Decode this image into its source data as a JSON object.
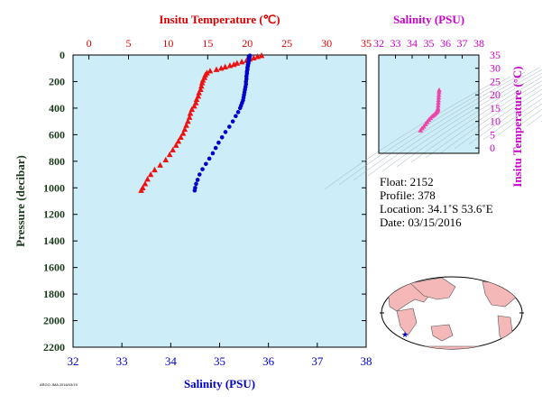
{
  "chart_data": [
    {
      "type": "scatter",
      "name": "profile",
      "y_axis": {
        "label": "Pressure (decibar)",
        "range": [
          0,
          2200
        ],
        "inverted": true,
        "ticks": [
          0,
          200,
          400,
          600,
          800,
          1000,
          1200,
          1400,
          1600,
          1800,
          2000,
          2200
        ]
      },
      "top_axis": {
        "label": "Insitu Temperature (℃)",
        "range": [
          -2,
          35
        ],
        "ticks": [
          0,
          5,
          10,
          15,
          20,
          25,
          30,
          35
        ],
        "color": "#dd0000"
      },
      "bottom_axis": {
        "label": "Salinity (PSU)",
        "range": [
          32,
          38
        ],
        "ticks": [
          32,
          33,
          34,
          35,
          36,
          37,
          38
        ],
        "color": "#0000cc"
      },
      "background": "#cdeef8",
      "series": [
        {
          "marker": "triangle",
          "color": "#ee1111",
          "axis": "top",
          "points": [
            [
              21.8,
              5
            ],
            [
              21.3,
              12
            ],
            [
              20.8,
              22
            ],
            [
              20.3,
              32
            ],
            [
              19.9,
              42
            ],
            [
              19.3,
              52
            ],
            [
              18.7,
              62
            ],
            [
              18.3,
              72
            ],
            [
              17.8,
              80
            ],
            [
              17.2,
              90
            ],
            [
              16.7,
              100
            ],
            [
              16.1,
              110
            ],
            [
              15.3,
              120
            ],
            [
              14.9,
              135
            ],
            [
              14.7,
              150
            ],
            [
              14.6,
              170
            ],
            [
              14.4,
              190
            ],
            [
              14.3,
              210
            ],
            [
              14.2,
              235
            ],
            [
              14.1,
              260
            ],
            [
              13.9,
              285
            ],
            [
              13.8,
              310
            ],
            [
              13.6,
              335
            ],
            [
              13.5,
              360
            ],
            [
              13.3,
              385
            ],
            [
              13.0,
              410
            ],
            [
              12.8,
              440
            ],
            [
              12.7,
              470
            ],
            [
              12.5,
              500
            ],
            [
              12.3,
              530
            ],
            [
              12.1,
              560
            ],
            [
              11.9,
              590
            ],
            [
              11.6,
              620
            ],
            [
              11.3,
              650
            ],
            [
              11.0,
              680
            ],
            [
              10.6,
              715
            ],
            [
              10.2,
              750
            ],
            [
              9.7,
              790
            ],
            [
              9.0,
              830
            ],
            [
              8.3,
              865
            ],
            [
              7.8,
              900
            ],
            [
              7.4,
              935
            ],
            [
              7.1,
              970
            ],
            [
              6.8,
              1000
            ],
            [
              6.6,
              1020
            ]
          ]
        },
        {
          "marker": "circle",
          "color": "#0000cc",
          "axis": "bottom",
          "points": [
            [
              35.62,
              5
            ],
            [
              35.61,
              12
            ],
            [
              35.61,
              22
            ],
            [
              35.6,
              32
            ],
            [
              35.6,
              42
            ],
            [
              35.59,
              52
            ],
            [
              35.59,
              62
            ],
            [
              35.58,
              72
            ],
            [
              35.58,
              82
            ],
            [
              35.57,
              95
            ],
            [
              35.57,
              110
            ],
            [
              35.56,
              125
            ],
            [
              35.56,
              140
            ],
            [
              35.55,
              160
            ],
            [
              35.55,
              180
            ],
            [
              35.54,
              200
            ],
            [
              35.54,
              220
            ],
            [
              35.53,
              240
            ],
            [
              35.52,
              260
            ],
            [
              35.51,
              280
            ],
            [
              35.5,
              300
            ],
            [
              35.49,
              320
            ],
            [
              35.48,
              340
            ],
            [
              35.46,
              360
            ],
            [
              35.44,
              380
            ],
            [
              35.42,
              400
            ],
            [
              35.38,
              430
            ],
            [
              35.33,
              460
            ],
            [
              35.27,
              500
            ],
            [
              35.2,
              540
            ],
            [
              35.12,
              580
            ],
            [
              35.05,
              620
            ],
            [
              34.98,
              660
            ],
            [
              34.92,
              700
            ],
            [
              34.86,
              740
            ],
            [
              34.79,
              780
            ],
            [
              34.72,
              820
            ],
            [
              34.65,
              860
            ],
            [
              34.59,
              900
            ],
            [
              34.55,
              940
            ],
            [
              34.52,
              970
            ],
            [
              34.5,
              1000
            ],
            [
              34.49,
              1020
            ]
          ]
        }
      ]
    },
    {
      "type": "scatter",
      "name": "ts-diagram",
      "top_axis": {
        "label": "Salinity (PSU)",
        "range": [
          32,
          38
        ],
        "ticks": [
          32,
          33,
          34,
          35,
          36,
          37,
          38
        ],
        "color": "#cc00cc"
      },
      "right_axis": {
        "label": "Insitu Temperature (°C)",
        "range": [
          -2,
          35
        ],
        "ticks": [
          0,
          5,
          10,
          15,
          20,
          25,
          30,
          35
        ],
        "color": "#cc00cc"
      },
      "marker": "triangle",
      "color": "#ee44aa",
      "points": [
        [
          35.62,
          21.8
        ],
        [
          35.61,
          21.0
        ],
        [
          35.6,
          20.0
        ],
        [
          35.59,
          19.0
        ],
        [
          35.58,
          18.0
        ],
        [
          35.57,
          17.0
        ],
        [
          35.56,
          16.0
        ],
        [
          35.55,
          15.0
        ],
        [
          35.54,
          14.6
        ],
        [
          35.52,
          14.3
        ],
        [
          35.5,
          14.0
        ],
        [
          35.47,
          13.7
        ],
        [
          35.43,
          13.3
        ],
        [
          35.38,
          12.9
        ],
        [
          35.3,
          12.4
        ],
        [
          35.2,
          11.9
        ],
        [
          35.1,
          11.3
        ],
        [
          35.0,
          10.6
        ],
        [
          34.9,
          9.8
        ],
        [
          34.8,
          9.0
        ],
        [
          34.7,
          8.1
        ],
        [
          34.6,
          7.4
        ],
        [
          34.5,
          6.6
        ]
      ]
    }
  ],
  "info": {
    "float": "Float:  2152",
    "profile": "Profile:  378",
    "location": "Location:  34.1˚S  53.6˚E",
    "date": "Date:  03/15/2016"
  },
  "map": {
    "land_color": "#f4b8b8",
    "ocean_color": "#ffffff",
    "marker_color": "#0000cc"
  },
  "footer": "ARGO JMA 2016/03/19"
}
